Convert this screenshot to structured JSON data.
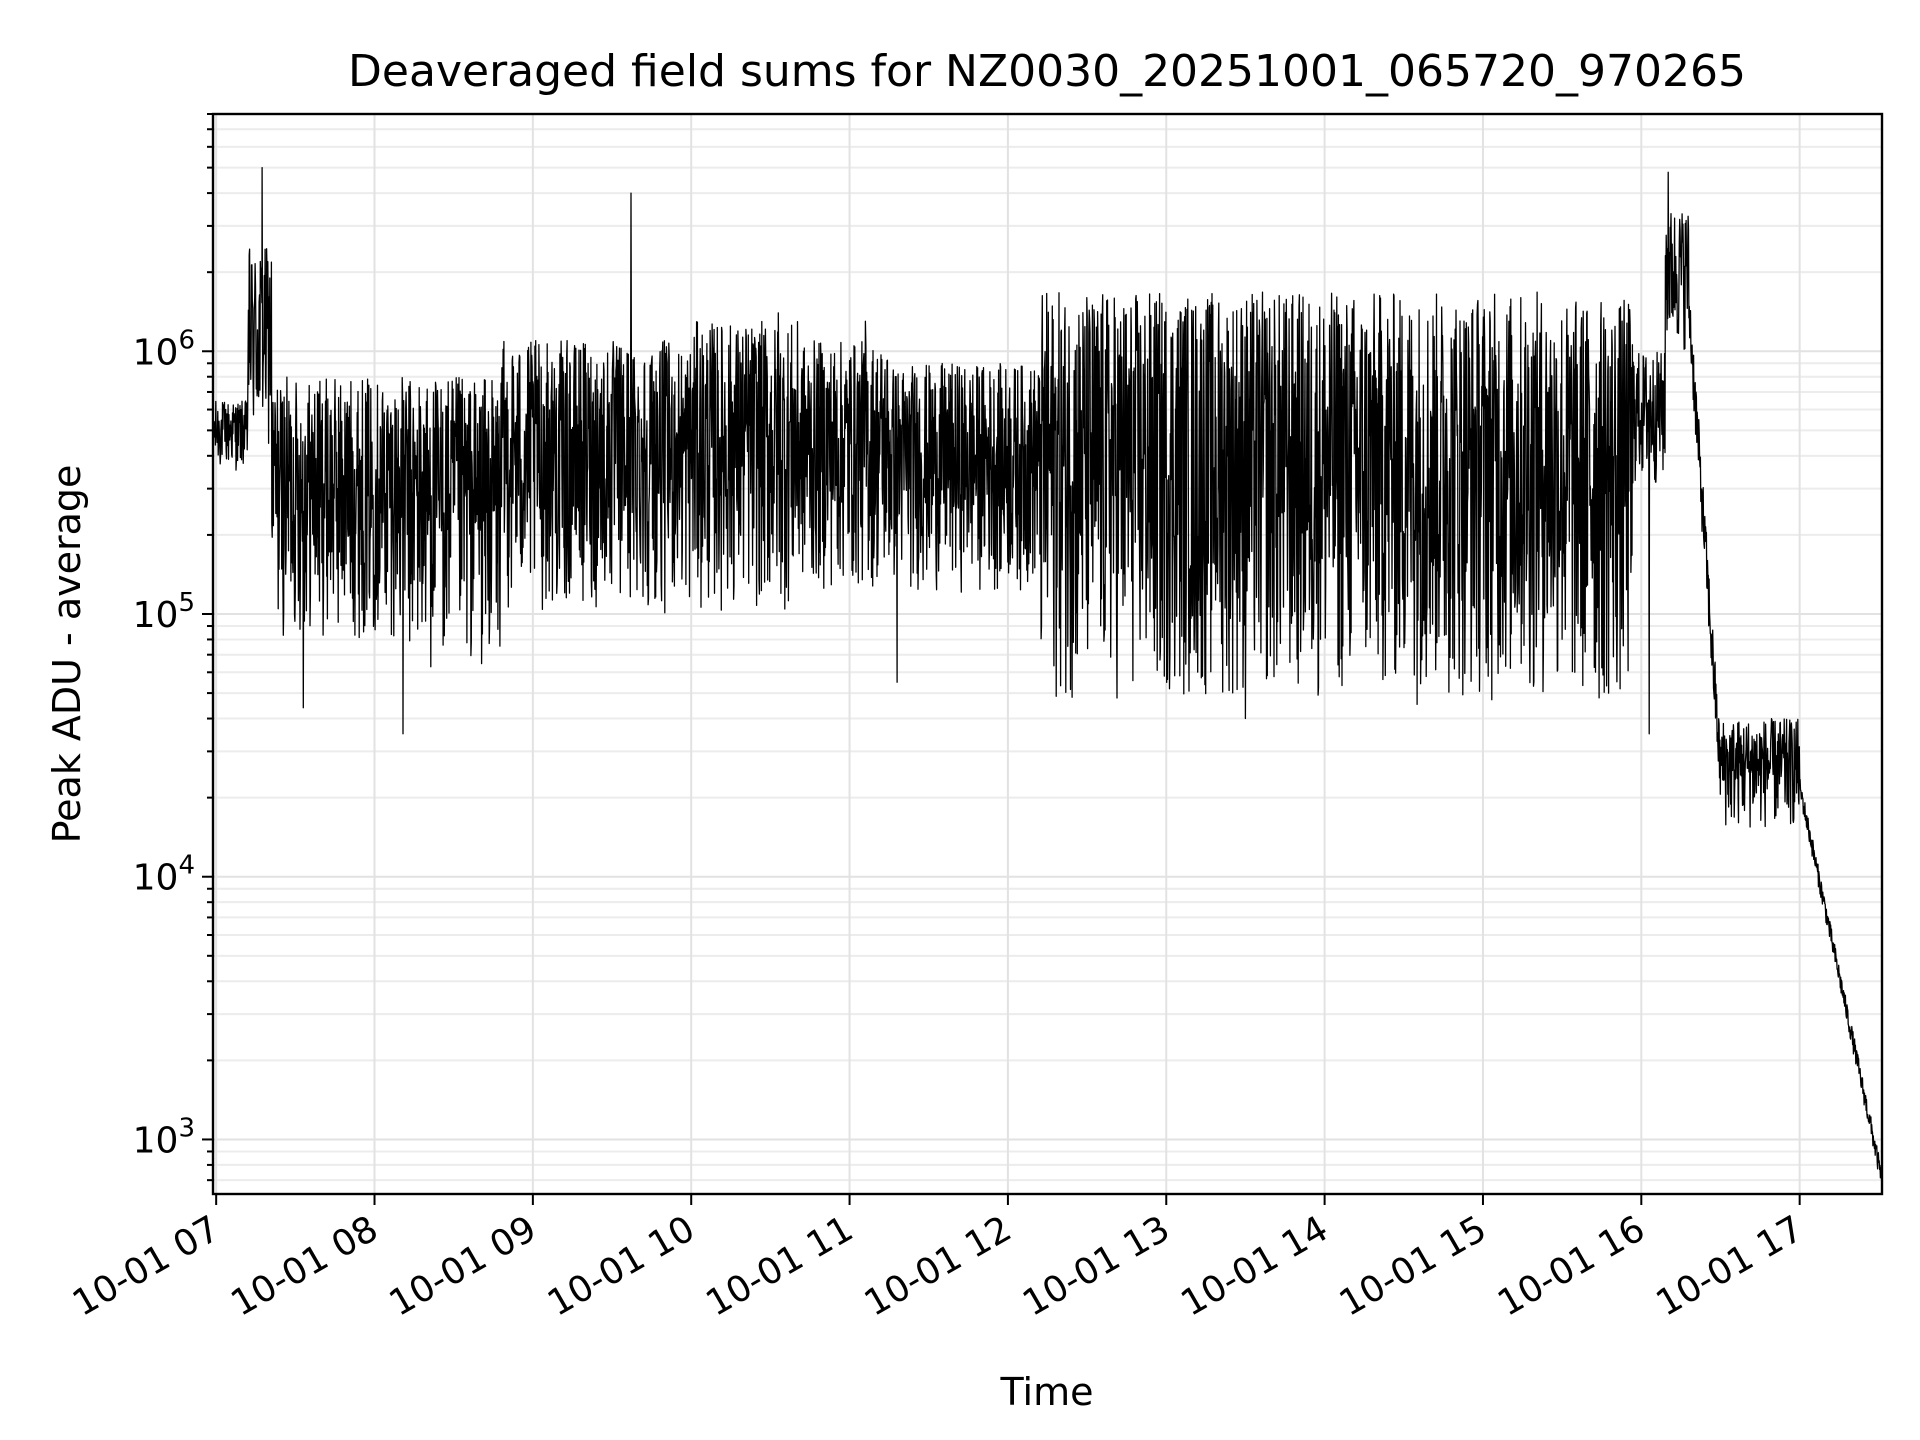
{
  "chart_data": {
    "type": "line",
    "title": "Deaveraged field sums for NZ0030_20251001_065720_970265",
    "xlabel": "Time",
    "ylabel": "Peak ADU - average",
    "yscale": "log",
    "ylim": [
      620,
      8000000
    ],
    "xlim_hours": [
      6.98,
      17.52
    ],
    "x_ticks": [
      {
        "hour": 7,
        "label": "10-01 07"
      },
      {
        "hour": 8,
        "label": "10-01 08"
      },
      {
        "hour": 9,
        "label": "10-01 09"
      },
      {
        "hour": 10,
        "label": "10-01 10"
      },
      {
        "hour": 11,
        "label": "10-01 11"
      },
      {
        "hour": 12,
        "label": "10-01 12"
      },
      {
        "hour": 13,
        "label": "10-01 13"
      },
      {
        "hour": 14,
        "label": "10-01 14"
      },
      {
        "hour": 15,
        "label": "10-01 15"
      },
      {
        "hour": 16,
        "label": "10-01 16"
      },
      {
        "hour": 17,
        "label": "10-01 17"
      }
    ],
    "y_ticks": [
      {
        "value": 1000,
        "base": "10",
        "exp": "3"
      },
      {
        "value": 10000,
        "base": "10",
        "exp": "4"
      },
      {
        "value": 100000,
        "base": "10",
        "exp": "5"
      },
      {
        "value": 1000000,
        "base": "10",
        "exp": "6"
      }
    ],
    "grid": true,
    "series": [
      {
        "name": "Peak ADU - average",
        "color": "#000000",
        "segments": [
          {
            "t0": 6.98,
            "t1": 7.2,
            "low": 350000,
            "high": 650000
          },
          {
            "t0": 7.2,
            "t1": 7.35,
            "low": 400000,
            "high": 2500000,
            "spike_hour": 7.29,
            "spike_value": 5000000
          },
          {
            "t0": 7.35,
            "t1": 8.2,
            "low": 80000,
            "high": 800000,
            "spike_hour": 7.55,
            "spike_value": 44000
          },
          {
            "t0": 8.2,
            "t1": 8.8,
            "low": 60000,
            "high": 800000,
            "spike_hour": 8.18,
            "spike_value": 35000
          },
          {
            "t0": 8.8,
            "t1": 10.0,
            "low": 100000,
            "high": 1100000,
            "spike_hour": 9.62,
            "spike_value": 4000000
          },
          {
            "t0": 10.0,
            "t1": 10.7,
            "low": 100000,
            "high": 1300000,
            "spike_hour": 10.55,
            "spike_value": 1400000
          },
          {
            "t0": 10.7,
            "t1": 11.25,
            "low": 120000,
            "high": 1100000,
            "spike_hour": 11.3,
            "spike_value": 55000
          },
          {
            "t0": 11.25,
            "t1": 12.2,
            "low": 120000,
            "high": 900000,
            "spike_hour": 11.1,
            "spike_value": 1300000
          },
          {
            "t0": 12.2,
            "t1": 15.5,
            "low": 45000,
            "high": 1700000,
            "spike_hour": 13.5,
            "spike_value": 40000
          },
          {
            "t0": 15.5,
            "t1": 15.95,
            "low": 40000,
            "high": 1600000,
            "spike_hour": 16.05,
            "spike_value": 35000
          },
          {
            "t0": 15.95,
            "t1": 16.15,
            "low": 300000,
            "high": 1000000
          },
          {
            "t0": 16.15,
            "t1": 16.3,
            "low": 1000000,
            "high": 3500000,
            "spike_hour": 16.17,
            "spike_value": 4800000
          },
          {
            "t0": 16.3,
            "t1": 16.5,
            "low": 20000,
            "high": 1500000
          },
          {
            "t0": 16.5,
            "t1": 17.0,
            "low": 15000,
            "high": 40000
          },
          {
            "t0": 17.0,
            "t1": 17.52,
            "low": 700,
            "high": 25000
          }
        ]
      }
    ]
  }
}
